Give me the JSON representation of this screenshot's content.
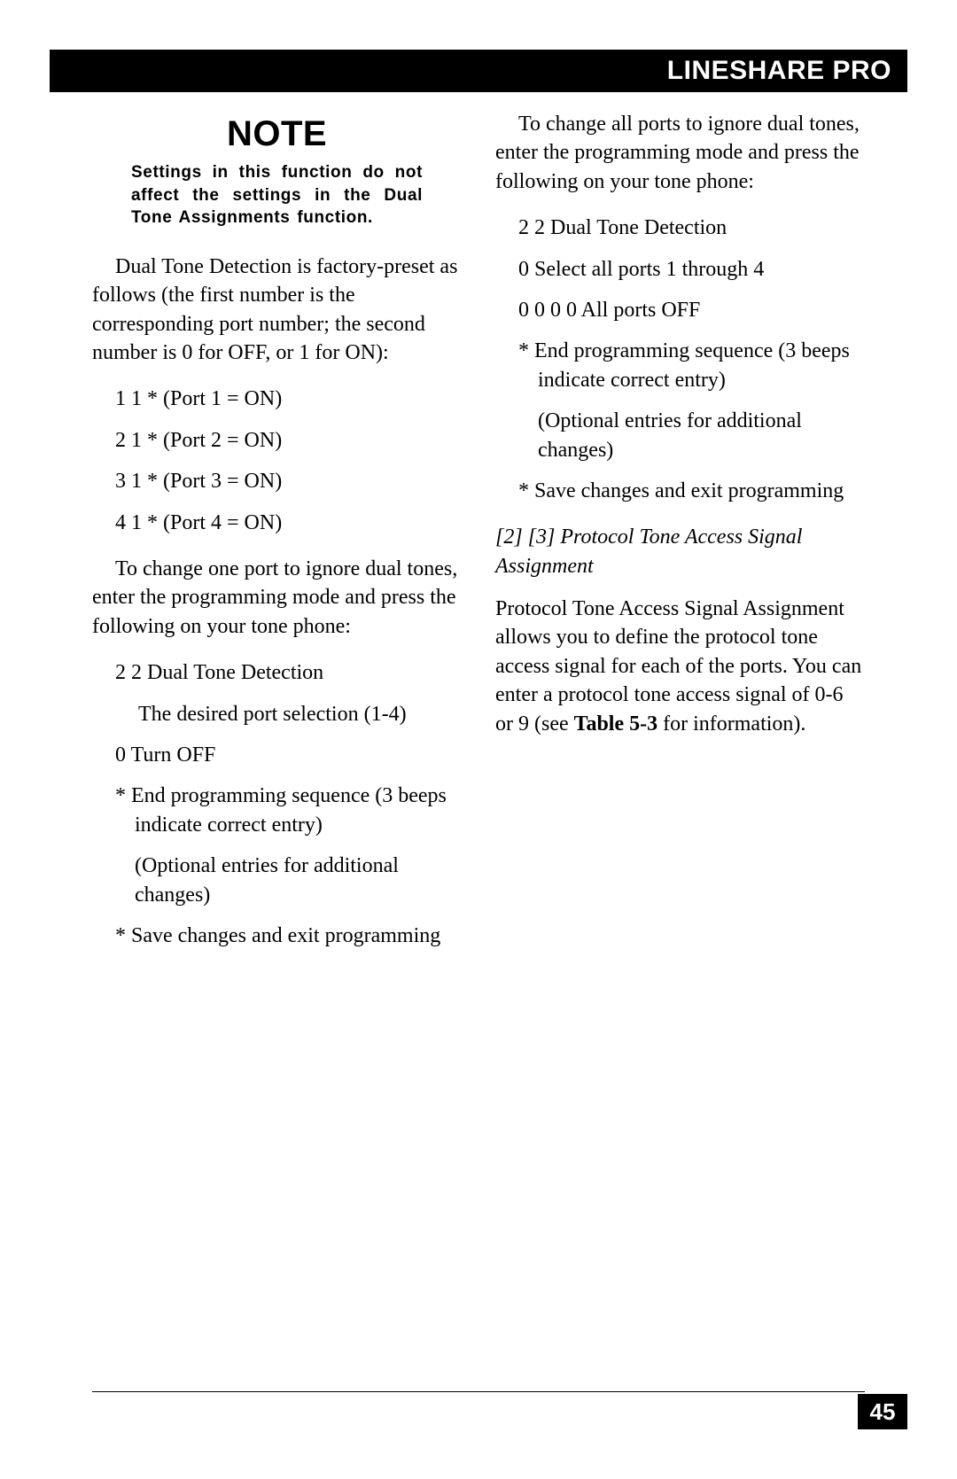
{
  "header": {
    "title": "LINESHARE PRO"
  },
  "left": {
    "note_heading": "NOTE",
    "note_body": "Settings in this function do not affect the settings in the Dual Tone Assignments function.",
    "p1": "Dual Tone Detection is factory-preset as follows (the first number is the corresponding port number; the second number is 0 for OFF, or  1 for ON):",
    "presets": [
      "1 1 * (Port 1 = ON)",
      "2 1 * (Port 2 = ON)",
      "3 1 * (Port 3 = ON)",
      "4 1 * (Port 4 = ON)"
    ],
    "p2": "To change one port to ignore dual tones, enter the programming mode and press the following on your tone phone:",
    "seq1_a": "2 2 Dual Tone Detection",
    "seq1_b": "The desired port selection (1-4)",
    "seq1_c": "0 Turn OFF",
    "seq1_d": "* End programming sequence (3 beeps indicate correct entry)",
    "seq1_e": "(Optional entries for additional changes)",
    "seq1_f": "* Save changes and exit programming"
  },
  "right": {
    "p1": "To change all ports to ignore dual tones, enter the programming mode and press the following on your tone phone:",
    "seq2_a": "2 2 Dual Tone Detection",
    "seq2_b": "0 Select all ports 1 through 4",
    "seq2_c": "0 0 0 0 All ports OFF",
    "seq2_d": "* End programming sequence (3 beeps indicate correct entry)",
    "seq2_e": "(Optional entries for additional changes)",
    "seq2_f": "* Save changes and exit programming",
    "sect_heading": "[2] [3] Protocol Tone Access Signal Assignment",
    "p2_a": "Protocol Tone Access Signal Assignment allows you to define the protocol tone access signal for each of the ports. You can enter a protocol tone access signal of 0-6 or 9 (see ",
    "p2_bold": "Table 5-3",
    "p2_b": " for information)."
  },
  "page_number": "45",
  "style": {
    "bg": "#ffffff",
    "text": "#000000",
    "bar_bg": "#000000",
    "bar_fg": "#ffffff",
    "body_font_pt": 18,
    "note_heading_pt": 30,
    "note_body_pt": 14
  }
}
